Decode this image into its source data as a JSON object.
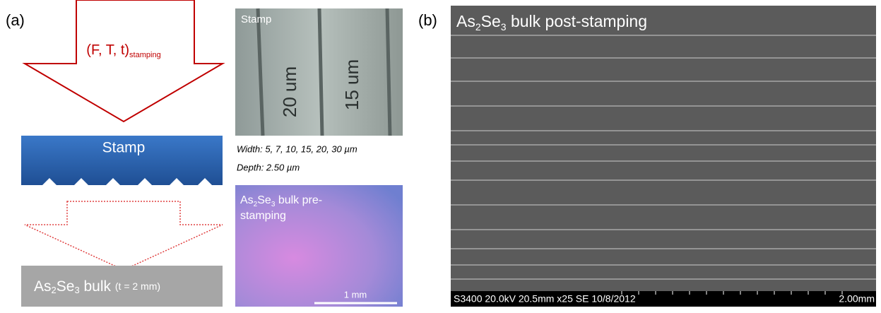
{
  "panel_a": {
    "label": "(a)",
    "arrow_label": {
      "main": "(F, T, t)",
      "sub": "stamping"
    },
    "stamp_label": "Stamp",
    "photo": {
      "label": "Stamp",
      "marks": [
        "20 um",
        "15 um"
      ]
    },
    "width_text": "Width: 5, 7, 10, 15, 20, 30 µm",
    "depth_text": "Depth: 2.50 µm",
    "pre_stamping": {
      "line1": [
        "As",
        "2",
        "Se",
        "3",
        " bulk pre-"
      ],
      "line2": "stamping",
      "scale_bar": "1 mm"
    },
    "bulk": {
      "parts": [
        "As",
        "2",
        "Se",
        "3",
        " bulk "
      ],
      "note": "(t = 2 mm)"
    }
  },
  "panel_b": {
    "label": "(b)",
    "title": [
      "As",
      "2",
      "Se",
      "3",
      " bulk post-stamping"
    ],
    "info_bar": "S3400 20.0kV 20.5mm x25 SE  10/8/2012",
    "scale_bar": "2.00mm"
  }
}
